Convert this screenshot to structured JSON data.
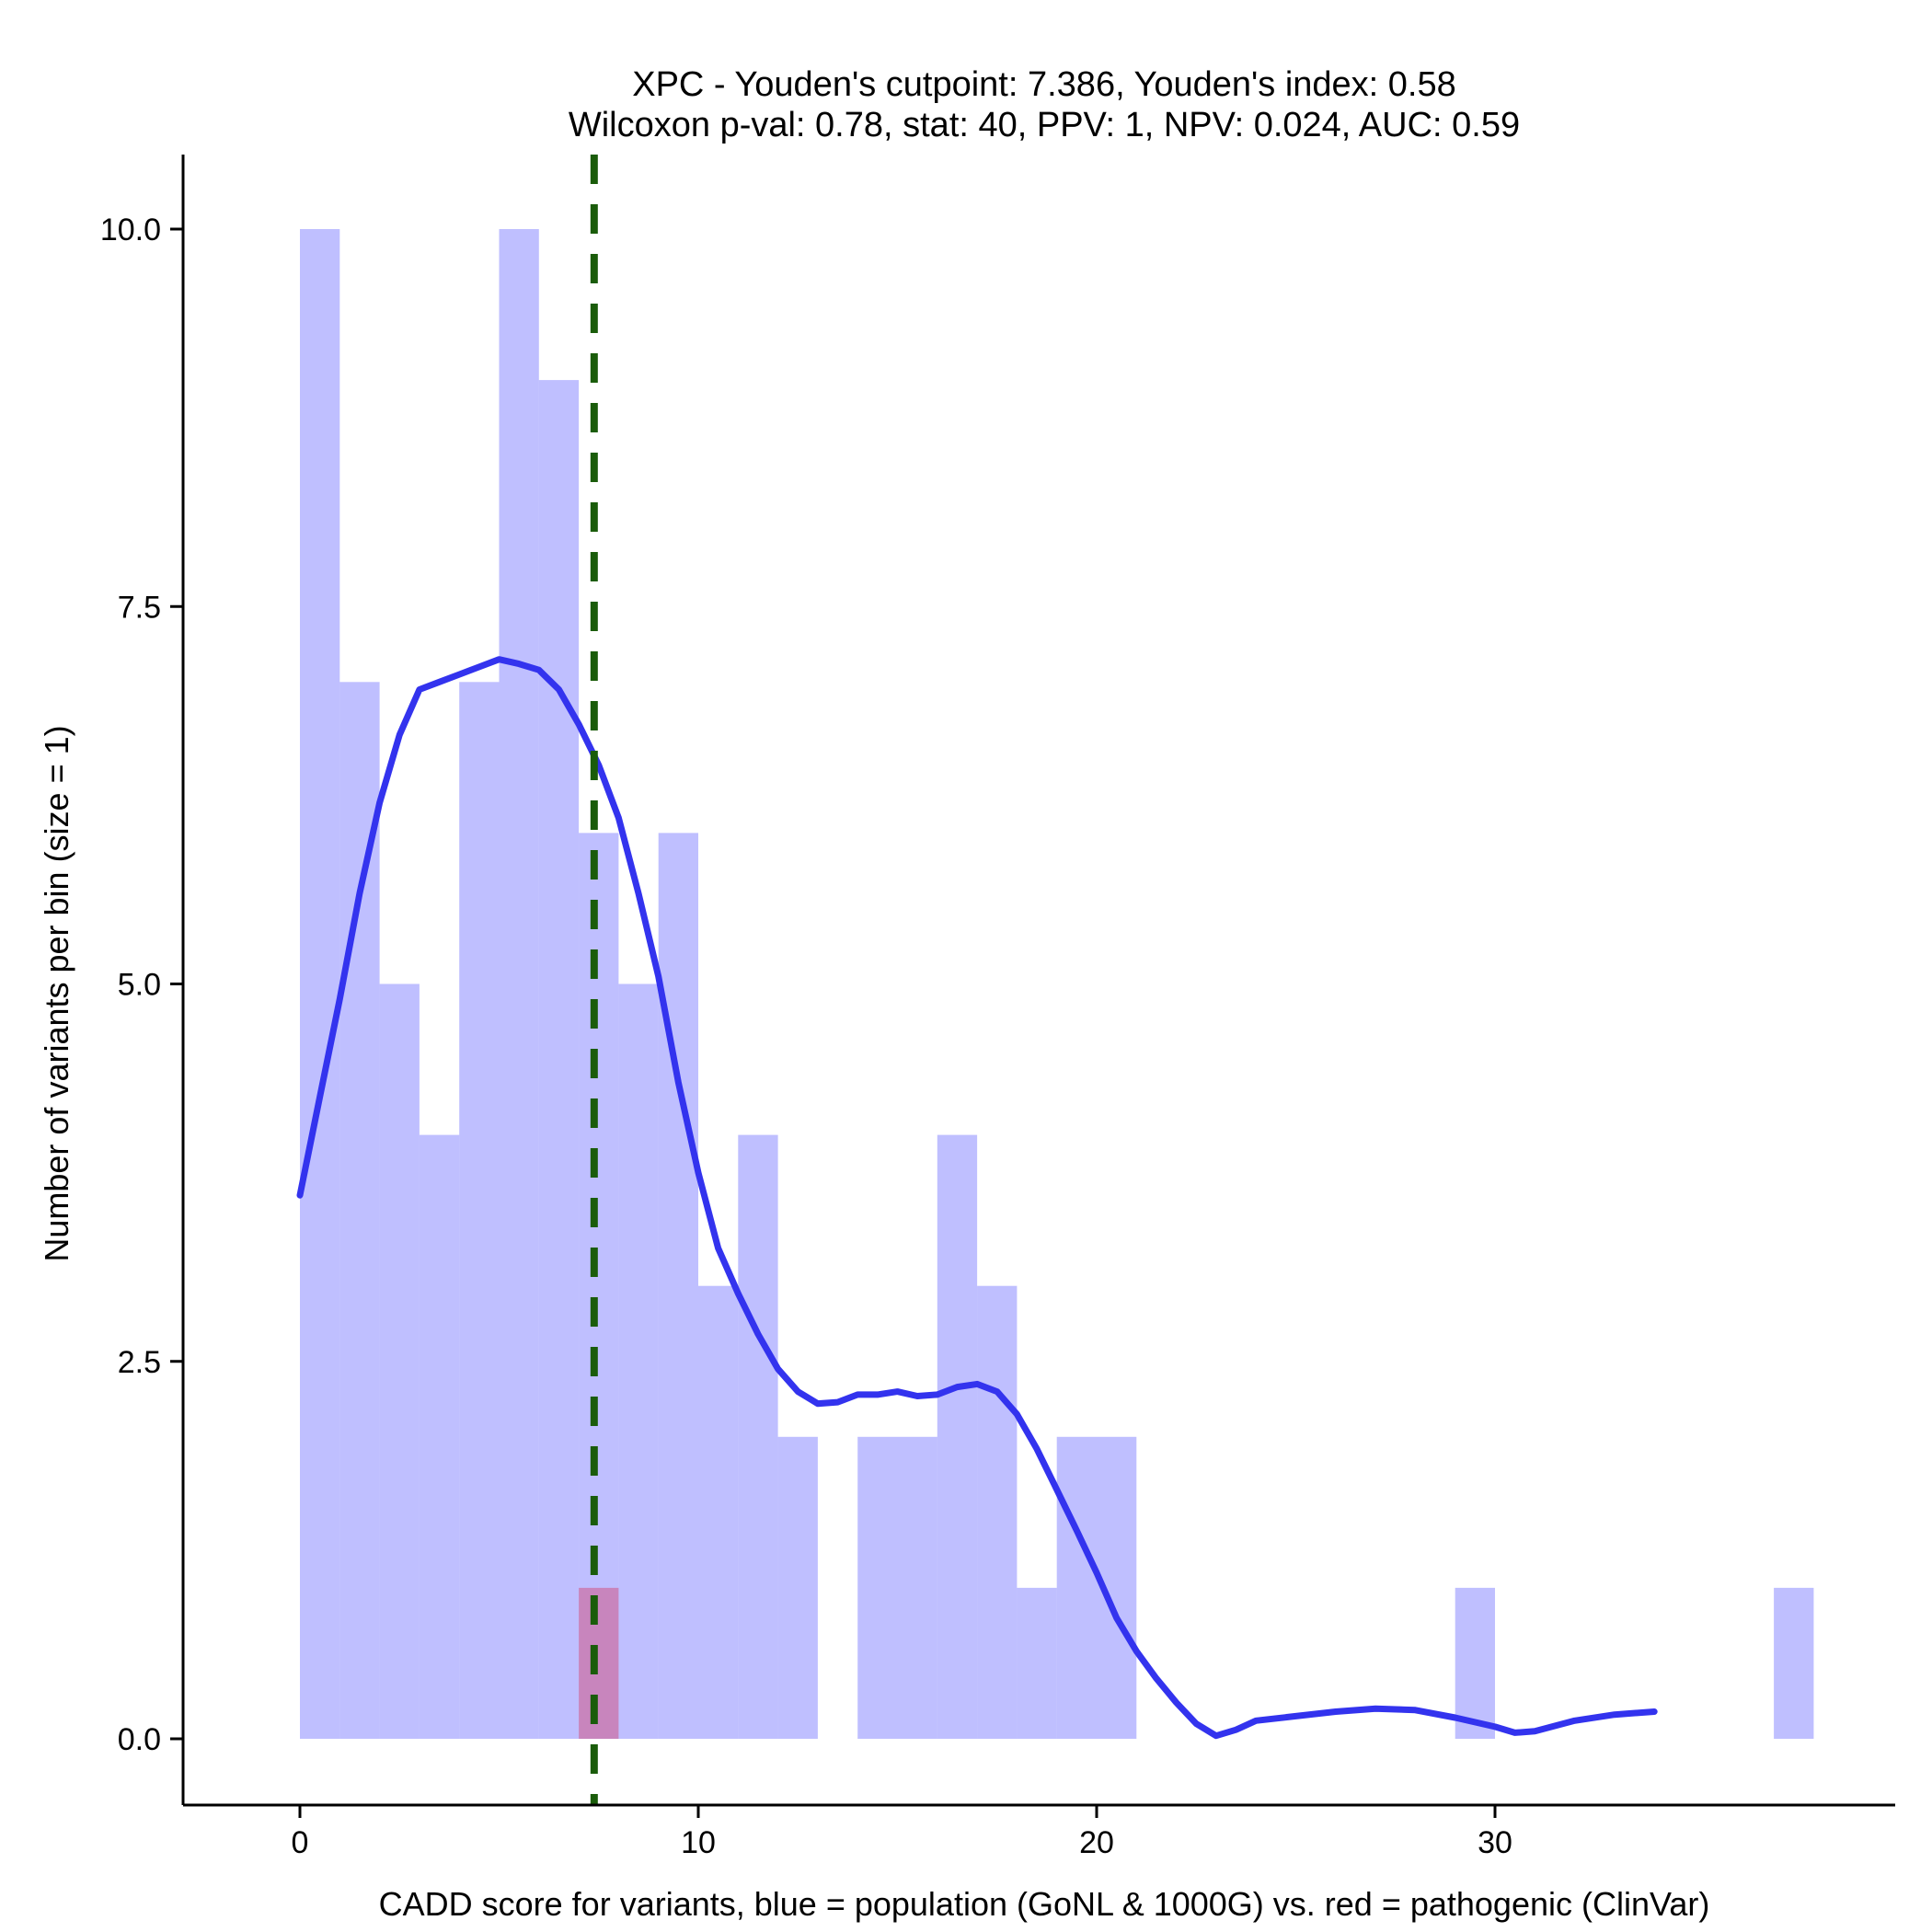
{
  "chart_data": {
    "type": "bar",
    "title_line1": "XPC - Youden's cutpoint: 7.386, Youden's index: 0.58",
    "title_line2": "Wilcoxon p-val: 0.78, stat: 40, PPV: 1, NPV: 0.024, AUC: 0.59",
    "xlabel": "CADD score for variants, blue = population (GoNL & 1000G) vs. red = pathogenic (ClinVar)",
    "ylabel": "Number of variants per bin (size = 1)",
    "xlim": [
      -3,
      40
    ],
    "ylim": [
      -0.5,
      10.5
    ],
    "x_ticks": [
      0,
      10,
      20,
      30
    ],
    "x_tick_labels": [
      "0",
      "10",
      "20",
      "30"
    ],
    "y_ticks": [
      0,
      2.5,
      5,
      7.5,
      10
    ],
    "y_tick_labels": [
      "0.0",
      "2.5",
      "5.0",
      "7.5",
      "10.0"
    ],
    "bin_width": 1,
    "series": [
      {
        "name": "population (GoNL & 1000G)",
        "color": "#8080ff",
        "opacity": 0.5,
        "bins": [
          {
            "x": 0,
            "count": 10
          },
          {
            "x": 1,
            "count": 7
          },
          {
            "x": 2,
            "count": 5
          },
          {
            "x": 3,
            "count": 4
          },
          {
            "x": 4,
            "count": 7
          },
          {
            "x": 5,
            "count": 10
          },
          {
            "x": 6,
            "count": 9
          },
          {
            "x": 7,
            "count": 6
          },
          {
            "x": 8,
            "count": 5
          },
          {
            "x": 9,
            "count": 6
          },
          {
            "x": 10,
            "count": 3
          },
          {
            "x": 11,
            "count": 4
          },
          {
            "x": 12,
            "count": 2
          },
          {
            "x": 14,
            "count": 2
          },
          {
            "x": 15,
            "count": 2
          },
          {
            "x": 16,
            "count": 4
          },
          {
            "x": 17,
            "count": 3
          },
          {
            "x": 18,
            "count": 1
          },
          {
            "x": 19,
            "count": 2
          },
          {
            "x": 20,
            "count": 2
          },
          {
            "x": 29,
            "count": 1
          },
          {
            "x": 37,
            "count": 1
          }
        ]
      },
      {
        "name": "pathogenic (ClinVar)",
        "color": "#cc6699",
        "opacity": 0.65,
        "bins": [
          {
            "x": 7,
            "count": 1
          }
        ]
      }
    ],
    "density_curve": {
      "color": "#3333ee",
      "points": [
        [
          0,
          3.6
        ],
        [
          0.5,
          4.25
        ],
        [
          1,
          4.9
        ],
        [
          1.5,
          5.6
        ],
        [
          2,
          6.2
        ],
        [
          2.5,
          6.65
        ],
        [
          3,
          6.95
        ],
        [
          3.5,
          7.0
        ],
        [
          4,
          7.05
        ],
        [
          4.5,
          7.1
        ],
        [
          5,
          7.15
        ],
        [
          5.5,
          7.12
        ],
        [
          6,
          7.08
        ],
        [
          6.5,
          6.95
        ],
        [
          7,
          6.72
        ],
        [
          7.5,
          6.45
        ],
        [
          8,
          6.1
        ],
        [
          8.5,
          5.6
        ],
        [
          9,
          5.05
        ],
        [
          9.5,
          4.35
        ],
        [
          10,
          3.75
        ],
        [
          10.5,
          3.25
        ],
        [
          11,
          2.95
        ],
        [
          11.5,
          2.68
        ],
        [
          12,
          2.45
        ],
        [
          12.5,
          2.3
        ],
        [
          13,
          2.22
        ],
        [
          13.5,
          2.23
        ],
        [
          14,
          2.28
        ],
        [
          14.5,
          2.28
        ],
        [
          15,
          2.3
        ],
        [
          15.5,
          2.27
        ],
        [
          16,
          2.28
        ],
        [
          16.5,
          2.33
        ],
        [
          17,
          2.35
        ],
        [
          17.5,
          2.3
        ],
        [
          18,
          2.15
        ],
        [
          18.5,
          1.92
        ],
        [
          19,
          1.65
        ],
        [
          19.5,
          1.38
        ],
        [
          20,
          1.1
        ],
        [
          20.5,
          0.8
        ],
        [
          21,
          0.58
        ],
        [
          21.5,
          0.4
        ],
        [
          22,
          0.24
        ],
        [
          22.5,
          0.1
        ],
        [
          23,
          0.02
        ],
        [
          23.5,
          0.06
        ],
        [
          24,
          0.12
        ],
        [
          25,
          0.15
        ],
        [
          26,
          0.18
        ],
        [
          27,
          0.2
        ],
        [
          28,
          0.19
        ],
        [
          29,
          0.14
        ],
        [
          30,
          0.08
        ],
        [
          30.5,
          0.04
        ],
        [
          31,
          0.05
        ],
        [
          32,
          0.12
        ],
        [
          33,
          0.16
        ],
        [
          34,
          0.18
        ]
      ]
    },
    "cutpoint": {
      "value": 7.386,
      "color": "#1a5c0a",
      "style": "dashed"
    }
  }
}
